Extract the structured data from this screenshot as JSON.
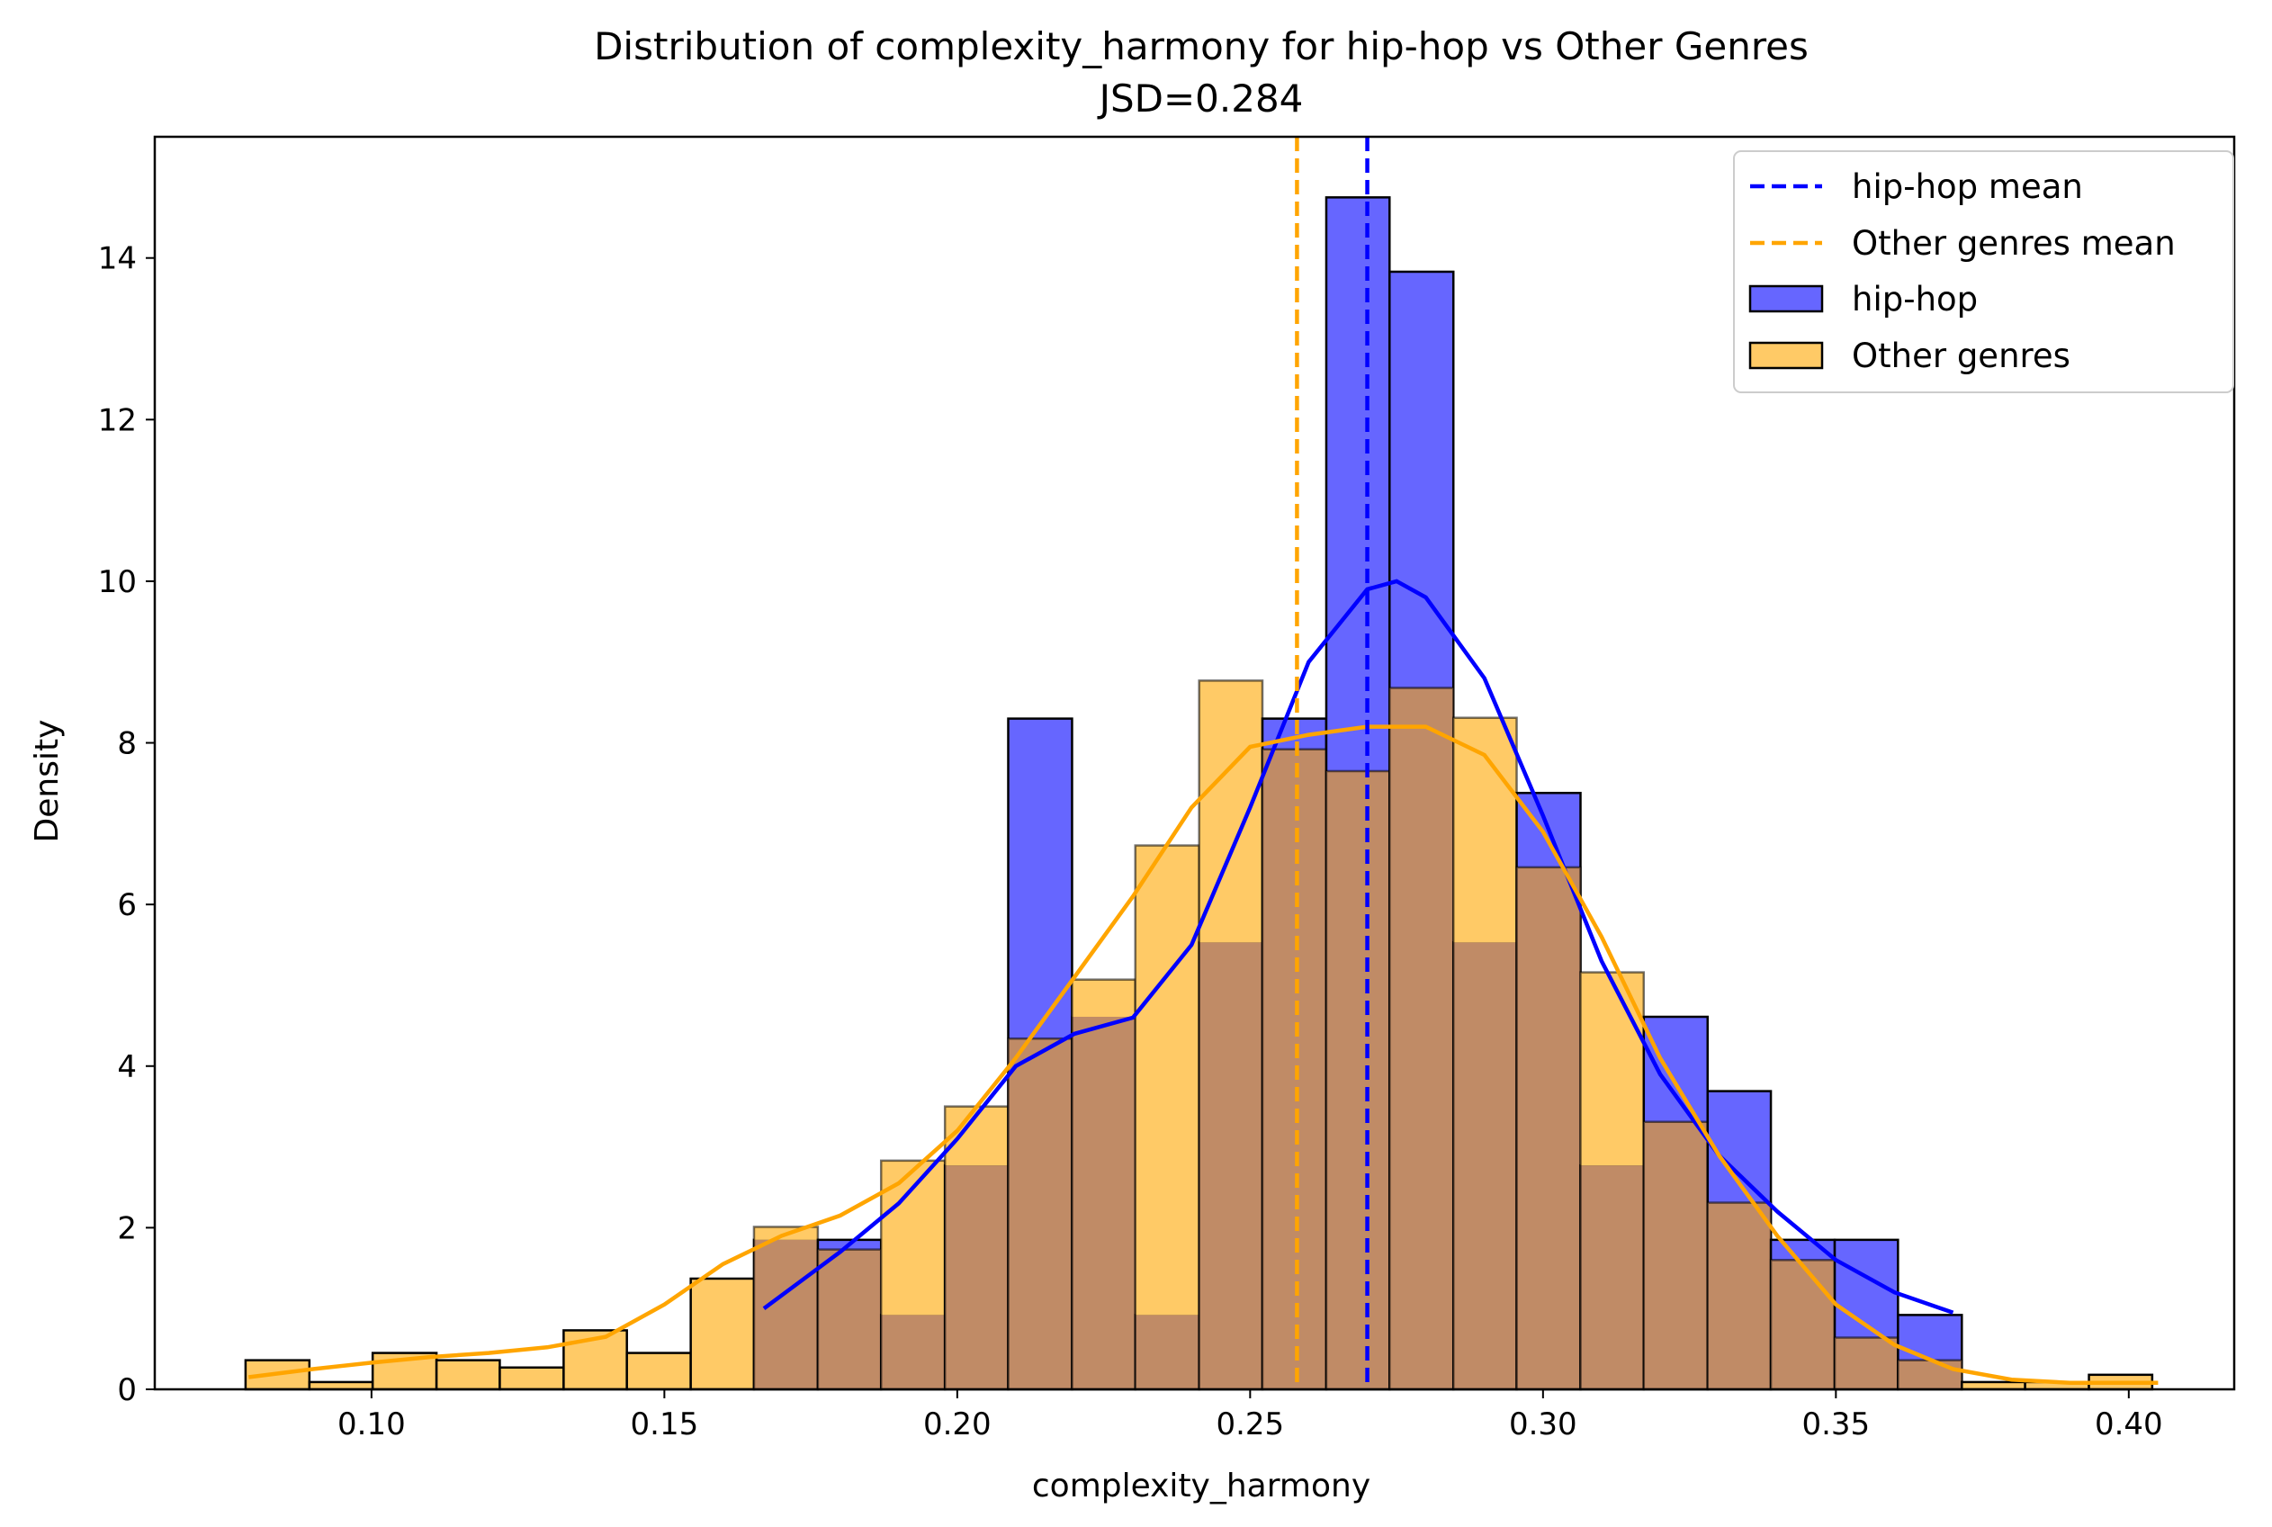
{
  "chart_data": {
    "type": "histogram",
    "title": "Distribution of complexity_harmony for hip-hop vs Other Genres",
    "subtitle": "JSD=0.284",
    "xlabel": "complexity_harmony",
    "ylabel": "Density",
    "xlim": [
      0.063,
      0.418
    ],
    "ylim": [
      0,
      15.5
    ],
    "xticks": [
      "0.10",
      "0.15",
      "0.20",
      "0.25",
      "0.30",
      "0.35",
      "0.40"
    ],
    "yticks": [
      "0",
      "2",
      "4",
      "6",
      "8",
      "10",
      "12",
      "14"
    ],
    "legend_position": "top-right",
    "colors": {
      "hiphop": "#0000ff",
      "hiphop_fill": "#6666ff",
      "other": "#ffa500",
      "other_fill": "#ffca66",
      "overlap": "#c08b66",
      "bar_edge": "#000000"
    },
    "legend": [
      {
        "label": "hip-hop mean",
        "kind": "dashed-line",
        "color": "#0000ff"
      },
      {
        "label": "Other genres mean",
        "kind": "dashed-line",
        "color": "#ffa500"
      },
      {
        "label": "hip-hop",
        "kind": "patch",
        "color": "#6666ff"
      },
      {
        "label": "Other genres",
        "kind": "patch",
        "color": "#ffca66"
      }
    ],
    "bin_edges": [
      0.0785,
      0.0894,
      0.1002,
      0.1111,
      0.1219,
      0.1328,
      0.1436,
      0.1545,
      0.1653,
      0.1762,
      0.187,
      0.1979,
      0.2087,
      0.2196,
      0.2304,
      0.2413,
      0.2521,
      0.263,
      0.2738,
      0.2847,
      0.2955,
      0.3064,
      0.3172,
      0.3281,
      0.3389,
      0.3498,
      0.3606,
      0.3715,
      0.3823,
      0.3932,
      0.404
    ],
    "series": [
      {
        "name": "hip-hop",
        "values": [
          0,
          0,
          0,
          0,
          0,
          0,
          0,
          0,
          1.85,
          1.85,
          0.92,
          2.77,
          8.3,
          4.61,
          0.92,
          5.53,
          8.3,
          14.75,
          13.83,
          5.53,
          7.38,
          2.77,
          4.61,
          3.69,
          1.85,
          1.85,
          0.92,
          0,
          0,
          0
        ]
      },
      {
        "name": "Other genres",
        "values": [
          0.36,
          0.09,
          0.45,
          0.36,
          0.27,
          0.73,
          0.45,
          1.37,
          2.01,
          1.73,
          2.83,
          3.5,
          4.34,
          5.07,
          6.73,
          8.77,
          7.92,
          7.65,
          8.68,
          8.31,
          6.46,
          5.16,
          3.31,
          2.31,
          1.6,
          0.64,
          0.36,
          0.09,
          0.09,
          0.18
        ]
      }
    ],
    "means": {
      "hip-hop": 0.27,
      "Other genres": 0.258
    },
    "kde": {
      "hip-hop": {
        "x": [
          0.167,
          0.18,
          0.19,
          0.2,
          0.21,
          0.22,
          0.23,
          0.24,
          0.25,
          0.26,
          0.27,
          0.275,
          0.28,
          0.29,
          0.3,
          0.31,
          0.32,
          0.33,
          0.34,
          0.35,
          0.36,
          0.37
        ],
        "y": [
          1.0,
          1.7,
          2.3,
          3.1,
          4.0,
          4.4,
          4.6,
          5.5,
          7.2,
          9.0,
          9.9,
          10.0,
          9.8,
          8.8,
          7.1,
          5.3,
          3.9,
          2.9,
          2.2,
          1.6,
          1.2,
          0.95
        ]
      },
      "Other genres": {
        "x": [
          0.079,
          0.09,
          0.1,
          0.11,
          0.12,
          0.13,
          0.14,
          0.15,
          0.16,
          0.17,
          0.18,
          0.19,
          0.2,
          0.21,
          0.22,
          0.23,
          0.24,
          0.25,
          0.26,
          0.27,
          0.28,
          0.29,
          0.3,
          0.31,
          0.32,
          0.33,
          0.34,
          0.35,
          0.36,
          0.37,
          0.38,
          0.39,
          0.4,
          0.405
        ],
        "y": [
          0.15,
          0.25,
          0.33,
          0.4,
          0.45,
          0.52,
          0.65,
          1.05,
          1.55,
          1.9,
          2.15,
          2.55,
          3.2,
          4.1,
          5.1,
          6.1,
          7.2,
          7.95,
          8.1,
          8.2,
          8.2,
          7.85,
          6.9,
          5.6,
          4.1,
          2.9,
          1.9,
          1.05,
          0.55,
          0.25,
          0.12,
          0.08,
          0.08,
          0.08
        ]
      }
    }
  }
}
